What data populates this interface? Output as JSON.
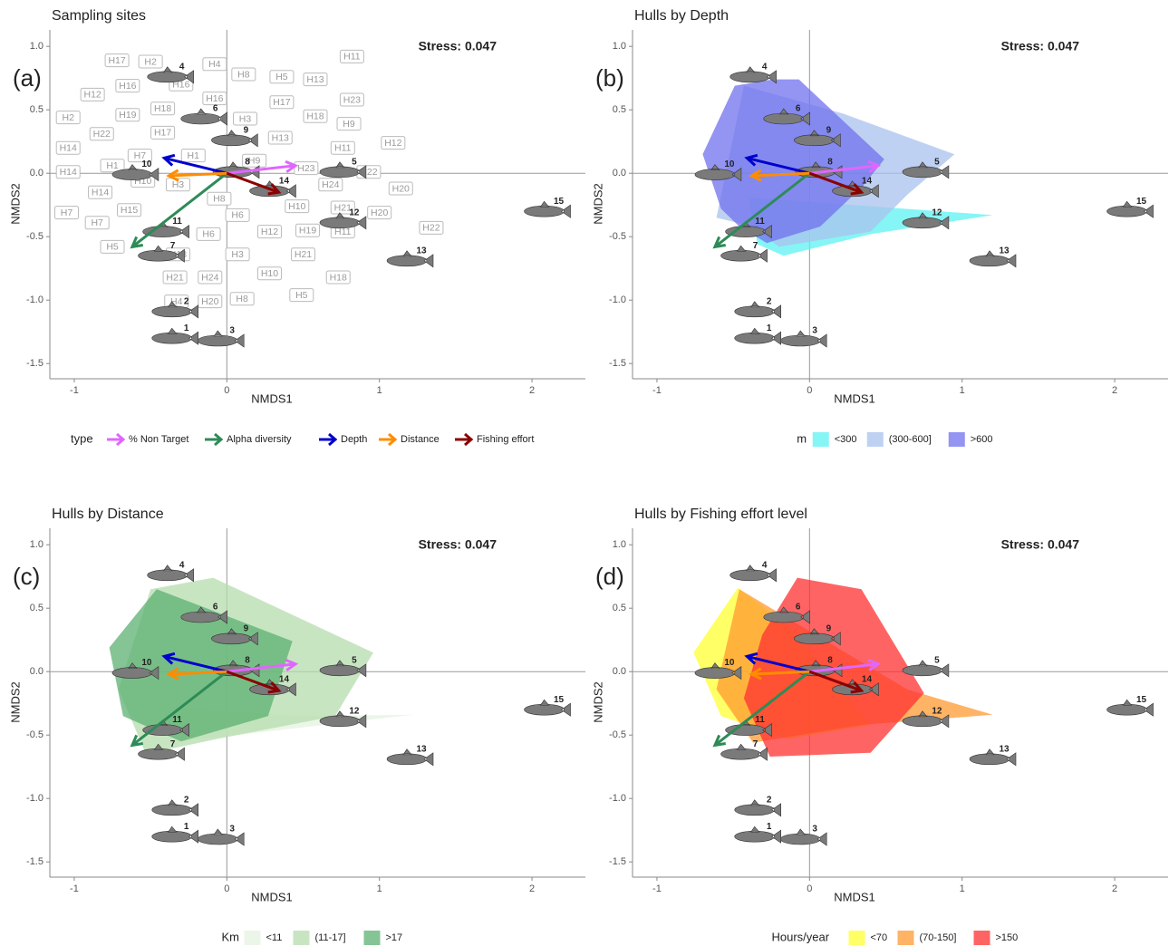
{
  "chart_data": [
    {
      "type": "scatter",
      "title": "Sampling sites",
      "panel_label": "(a)",
      "annotation": "Stress: 0.047",
      "x_label": "NMDS1",
      "y_label": "NMDS2",
      "xlim": [
        -1.16,
        2.35
      ],
      "ylim": [
        -1.62,
        1.13
      ],
      "xticks": [
        -1,
        0,
        1,
        2
      ],
      "yticks": [
        {
          "value": 1,
          "label": "1.0"
        },
        0.5,
        {
          "value": 0,
          "label": "0.0"
        },
        -0.5,
        {
          "value": -1,
          "label": "-1.0"
        },
        -1.5
      ],
      "species": {
        "labels": [
          "1",
          "2",
          "3",
          "4",
          "5",
          "6",
          "7",
          "8",
          "9",
          "10",
          "11",
          "12",
          "13",
          "14",
          "15"
        ],
        "x": [
          -0.36,
          -0.36,
          -0.06,
          -0.39,
          0.74,
          -0.17,
          -0.45,
          0.04,
          0.03,
          -0.62,
          -0.42,
          0.74,
          1.18,
          0.28,
          2.08
        ],
        "y": [
          -1.3,
          -1.09,
          -1.32,
          0.76,
          0.01,
          0.43,
          -0.65,
          0.01,
          0.26,
          -0.01,
          -0.46,
          -0.39,
          -0.69,
          -0.14,
          -0.3
        ]
      },
      "legend_title": "type",
      "vectors": [
        {
          "name": "% Non Target",
          "color": "#e066ff",
          "x": 0.45,
          "y": 0.06
        },
        {
          "name": "Alpha diversity",
          "color": "#2e8b57",
          "x": -0.62,
          "y": -0.58
        },
        {
          "name": "Depth",
          "color": "#0000cd",
          "x": -0.41,
          "y": 0.12
        },
        {
          "name": "Distance",
          "color": "#ff8c00",
          "x": -0.38,
          "y": -0.02
        },
        {
          "name": "Fishing effort",
          "color": "#8b0000",
          "x": 0.34,
          "y": -0.15
        }
      ],
      "sites": {
        "labels": [
          "H17",
          "H2",
          "H16",
          "H4",
          "H8",
          "H5",
          "H13",
          "H11",
          "H16",
          "H12",
          "H16",
          "H19",
          "H18",
          "H23",
          "H2",
          "H3",
          "H17",
          "H18",
          "H9",
          "H22",
          "H17",
          "H13",
          "H14",
          "H7",
          "H11",
          "H12",
          "H1",
          "H9",
          "H23",
          "H14",
          "H1",
          "H22",
          "H10",
          "H3",
          "H14",
          "H24",
          "H20",
          "H8",
          "H10",
          "H7",
          "H15",
          "H21",
          "H20",
          "H6",
          "H7",
          "H12",
          "H19",
          "H5",
          "H6",
          "H11",
          "H22",
          "H13",
          "H3",
          "H21",
          "H21",
          "H24",
          "H10",
          "H18",
          "H4",
          "H20",
          "H8",
          "H5"
        ],
        "x": [
          -0.72,
          -0.5,
          -0.3,
          -0.08,
          0.11,
          0.36,
          0.58,
          0.82,
          -0.65,
          -0.88,
          -0.08,
          -0.65,
          -0.42,
          0.82,
          -1.04,
          0.12,
          0.36,
          0.58,
          0.8,
          -0.82,
          -0.42,
          0.35,
          -1.04,
          -0.57,
          0.76,
          1.09,
          -0.22,
          0.18,
          0.52,
          -1.04,
          -0.75,
          0.93,
          -0.55,
          -0.32,
          -0.83,
          0.68,
          1.14,
          -0.05,
          0.46,
          -1.05,
          -0.64,
          0.76,
          1.0,
          0.07,
          -0.85,
          0.28,
          0.53,
          -0.75,
          -0.12,
          0.76,
          1.34,
          -0.32,
          0.07,
          0.5,
          -0.34,
          -0.11,
          0.28,
          0.73,
          -0.33,
          -0.11,
          0.1,
          0.49
        ],
        "y": [
          0.89,
          0.88,
          0.7,
          0.86,
          0.78,
          0.76,
          0.74,
          0.92,
          0.69,
          0.62,
          0.59,
          0.46,
          0.51,
          0.58,
          0.44,
          0.43,
          0.56,
          0.45,
          0.39,
          0.31,
          0.32,
          0.28,
          0.2,
          0.14,
          0.2,
          0.24,
          0.14,
          0.1,
          0.04,
          0.01,
          0.06,
          0.01,
          -0.06,
          -0.09,
          -0.15,
          -0.09,
          -0.12,
          -0.2,
          -0.26,
          -0.31,
          -0.29,
          -0.27,
          -0.31,
          -0.33,
          -0.39,
          -0.46,
          -0.45,
          -0.58,
          -0.48,
          -0.46,
          -0.43,
          -0.64,
          -0.64,
          -0.64,
          -0.82,
          -0.82,
          -0.79,
          -0.82,
          -1.01,
          -1.01,
          -0.99,
          -0.96
        ]
      }
    },
    {
      "type": "scatter",
      "title": "Hulls by Depth",
      "panel_label": "(b)",
      "annotation": "Stress: 0.047",
      "x_label": "NMDS1",
      "y_label": "NMDS2",
      "xlim": [
        -1.16,
        2.35
      ],
      "ylim": [
        -1.62,
        1.13
      ],
      "xticks": [
        -1,
        0,
        1,
        2
      ],
      "yticks": [
        {
          "value": 1,
          "label": "1.0"
        },
        0.5,
        {
          "value": 0,
          "label": "0.0"
        },
        -0.5,
        {
          "value": -1,
          "label": "-1.0"
        },
        -1.5
      ],
      "species": {
        "labels": [
          "1",
          "2",
          "3",
          "4",
          "5",
          "6",
          "7",
          "8",
          "9",
          "10",
          "11",
          "12",
          "13",
          "14",
          "15"
        ],
        "x": [
          -0.36,
          -0.36,
          -0.06,
          -0.39,
          0.74,
          -0.17,
          -0.45,
          0.04,
          0.03,
          -0.62,
          -0.42,
          0.74,
          1.18,
          0.28,
          2.08
        ],
        "y": [
          -1.3,
          -1.09,
          -1.32,
          0.76,
          0.01,
          0.43,
          -0.65,
          0.01,
          0.26,
          -0.01,
          -0.46,
          -0.39,
          -0.69,
          -0.14,
          -0.3
        ]
      },
      "vectors": [
        {
          "color": "#e066ff",
          "x": 0.45,
          "y": 0.06
        },
        {
          "color": "#2e8b57",
          "x": -0.62,
          "y": -0.58
        },
        {
          "color": "#0000cd",
          "x": -0.41,
          "y": 0.12
        },
        {
          "color": "#ff8c00",
          "x": -0.38,
          "y": -0.02
        },
        {
          "color": "#8b0000",
          "x": 0.34,
          "y": -0.15
        }
      ],
      "legend_title": "m",
      "hulls": [
        {
          "name": "<300",
          "color": "#5ef2f2",
          "x": [
            -0.4,
            1.2,
            0.4,
            -0.17,
            -0.34
          ],
          "y": [
            -0.19,
            -0.33,
            -0.48,
            -0.65,
            -0.56
          ]
        },
        {
          "name": "(300-600]",
          "color": "#a9c1ee",
          "x": [
            -0.43,
            0.22,
            0.95,
            0.64,
            0.4,
            -0.2,
            -0.37,
            -0.61
          ],
          "y": [
            0.69,
            0.47,
            0.15,
            -0.17,
            -0.46,
            -0.58,
            -0.42,
            -0.35
          ]
        },
        {
          "name": ">600",
          "color": "#7070ee",
          "x": [
            -0.24,
            -0.07,
            0.49,
            0.35,
            0.07,
            -0.28,
            -0.46,
            -0.58,
            -0.7,
            -0.49
          ],
          "y": [
            0.74,
            0.74,
            0.11,
            -0.1,
            -0.42,
            -0.55,
            -0.42,
            -0.28,
            0.15,
            0.69
          ]
        }
      ]
    },
    {
      "type": "scatter",
      "title": "Hulls by Distance",
      "panel_label": "(c)",
      "annotation": "Stress: 0.047",
      "x_label": "NMDS1",
      "y_label": "NMDS2",
      "xlim": [
        -1.16,
        2.35
      ],
      "ylim": [
        -1.62,
        1.13
      ],
      "xticks": [
        -1,
        0,
        1,
        2
      ],
      "yticks": [
        {
          "value": 1,
          "label": "1.0"
        },
        0.5,
        {
          "value": 0,
          "label": "0.0"
        },
        -0.5,
        {
          "value": -1,
          "label": "-1.0"
        },
        -1.5
      ],
      "species": {
        "labels": [
          "1",
          "2",
          "3",
          "4",
          "5",
          "6",
          "7",
          "8",
          "9",
          "10",
          "11",
          "12",
          "13",
          "14",
          "15"
        ],
        "x": [
          -0.36,
          -0.36,
          -0.06,
          -0.39,
          0.74,
          -0.17,
          -0.45,
          0.04,
          0.03,
          -0.62,
          -0.42,
          0.74,
          1.18,
          0.28,
          2.08
        ],
        "y": [
          -1.3,
          -1.09,
          -1.32,
          0.76,
          0.01,
          0.43,
          -0.65,
          0.01,
          0.26,
          -0.01,
          -0.46,
          -0.39,
          -0.69,
          -0.14,
          -0.3
        ]
      },
      "vectors": [
        {
          "color": "#e066ff",
          "x": 0.45,
          "y": 0.06
        },
        {
          "color": "#2e8b57",
          "x": -0.62,
          "y": -0.58
        },
        {
          "color": "#0000cd",
          "x": -0.41,
          "y": 0.12
        },
        {
          "color": "#ff8c00",
          "x": -0.38,
          "y": -0.02
        },
        {
          "color": "#8b0000",
          "x": 0.34,
          "y": -0.15
        }
      ],
      "legend_title": "Km",
      "hulls": [
        {
          "name": "<11",
          "color": "#e5f3e0",
          "x": [
            -0.3,
            1.22,
            0.47,
            -0.3
          ],
          "y": [
            -0.55,
            -0.34,
            -0.35,
            -0.28
          ]
        },
        {
          "name": "(11-17]",
          "color": "#b5dcad",
          "x": [
            -0.09,
            0.96,
            0.71,
            -0.06,
            -0.53,
            -0.71,
            -0.5
          ],
          "y": [
            0.74,
            0.15,
            -0.35,
            -0.53,
            -0.65,
            -0.14,
            0.65
          ]
        },
        {
          "name": ">17",
          "color": "#5cb072",
          "x": [
            -0.46,
            0.43,
            0.27,
            -0.3,
            -0.68,
            -0.77
          ],
          "y": [
            0.65,
            0.24,
            -0.35,
            -0.55,
            -0.35,
            0.19
          ]
        }
      ]
    },
    {
      "type": "scatter",
      "title": "Hulls by Fishing effort level",
      "panel_label": "(d)",
      "annotation": "Stress: 0.047",
      "x_label": "NMDS1",
      "y_label": "NMDS2",
      "xlim": [
        -1.16,
        2.35
      ],
      "ylim": [
        -1.62,
        1.13
      ],
      "xticks": [
        -1,
        0,
        1,
        2
      ],
      "yticks": [
        {
          "value": 1,
          "label": "1.0"
        },
        0.5,
        {
          "value": 0,
          "label": "0.0"
        },
        -0.5,
        {
          "value": -1,
          "label": "-1.0"
        },
        -1.5
      ],
      "species": {
        "labels": [
          "1",
          "2",
          "3",
          "4",
          "5",
          "6",
          "7",
          "8",
          "9",
          "10",
          "11",
          "12",
          "13",
          "14",
          "15"
        ],
        "x": [
          -0.36,
          -0.36,
          -0.06,
          -0.39,
          0.74,
          -0.17,
          -0.45,
          0.04,
          0.03,
          -0.62,
          -0.42,
          0.74,
          1.18,
          0.28,
          2.08
        ],
        "y": [
          -1.3,
          -1.09,
          -1.32,
          0.76,
          0.01,
          0.43,
          -0.65,
          0.01,
          0.26,
          -0.01,
          -0.46,
          -0.39,
          -0.69,
          -0.14,
          -0.3
        ]
      },
      "vectors": [
        {
          "color": "#e066ff",
          "x": 0.45,
          "y": 0.06
        },
        {
          "color": "#2e8b57",
          "x": -0.62,
          "y": -0.58
        },
        {
          "color": "#0000cd",
          "x": -0.41,
          "y": 0.12
        },
        {
          "color": "#ff8c00",
          "x": -0.38,
          "y": -0.02
        },
        {
          "color": "#8b0000",
          "x": 0.34,
          "y": -0.15
        }
      ],
      "legend_title": "Hours/year",
      "hulls": [
        {
          "name": "<70",
          "color": "#ffff33",
          "x": [
            -0.47,
            -0.14,
            0.4,
            -0.14,
            -0.58,
            -0.76
          ],
          "y": [
            0.66,
            0.36,
            -0.42,
            -0.53,
            -0.35,
            0.15
          ]
        },
        {
          "name": "(70-150]",
          "color": "#ff9a30",
          "x": [
            -0.46,
            0.64,
            1.2,
            0.34,
            -0.37,
            -0.61
          ],
          "y": [
            0.65,
            -0.14,
            -0.34,
            -0.42,
            -0.56,
            -0.14
          ]
        },
        {
          "name": ">150",
          "color": "#ff3030",
          "x": [
            -0.08,
            0.34,
            0.75,
            0.4,
            -0.26,
            -0.43,
            -0.31
          ],
          "y": [
            0.74,
            0.65,
            -0.17,
            -0.64,
            -0.67,
            -0.21,
            0.29
          ]
        }
      ]
    }
  ]
}
